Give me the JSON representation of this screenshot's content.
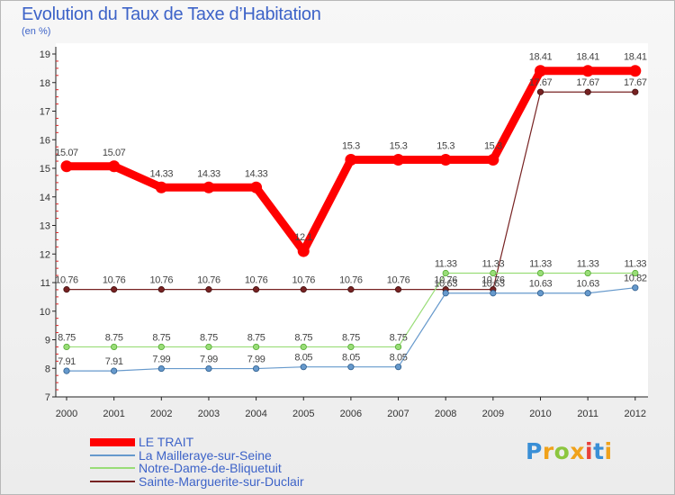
{
  "header": {
    "title": "Evolution du Taux de Taxe d’Habitation",
    "unit": "(en %)"
  },
  "logo": {
    "text": "Proxiti"
  },
  "chart_data": {
    "type": "line",
    "title": "Evolution du Taux de Taxe d’Habitation",
    "ylabel": "(en %)",
    "xlabel": "",
    "x": [
      "2000",
      "2001",
      "2002",
      "2003",
      "2004",
      "2005",
      "2006",
      "2007",
      "2008",
      "2009",
      "2010",
      "2011",
      "2012"
    ],
    "ylim": [
      7,
      19
    ],
    "yticks": [
      "7",
      "8",
      "9",
      "10",
      "11",
      "12",
      "13",
      "14",
      "15",
      "16",
      "17",
      "18",
      "19"
    ],
    "grid": false,
    "legend_position": "bottom-left",
    "series": [
      {
        "name": "LE TRAIT",
        "color": "#ff0000",
        "values": [
          15.07,
          15.07,
          14.33,
          14.33,
          14.33,
          12.1,
          15.3,
          15.3,
          15.3,
          15.3,
          18.41,
          18.41,
          18.41
        ],
        "labels": [
          "15.07",
          "15.07",
          "14.33",
          "14.33",
          "14.33",
          "12.1",
          "15.3",
          "15.3",
          "15.3",
          "15.3",
          "18.41",
          "18.41",
          "18.41"
        ]
      },
      {
        "name": "La Mailleraye-sur-Seine",
        "color": "#6699cc",
        "values": [
          7.91,
          7.91,
          7.99,
          7.99,
          7.99,
          8.05,
          8.05,
          8.05,
          10.63,
          10.63,
          10.63,
          10.63,
          10.82
        ],
        "labels": [
          "7.91",
          "7.91",
          "7.99",
          "7.99",
          "7.99",
          "8.05",
          "8.05",
          "8.05",
          "10.63",
          "10.63",
          "10.63",
          "10.63",
          "10.82"
        ]
      },
      {
        "name": "Notre-Dame-de-Bliquetuit",
        "color": "#99dd77",
        "values": [
          8.75,
          8.75,
          8.75,
          8.75,
          8.75,
          8.75,
          8.75,
          8.75,
          11.33,
          11.33,
          11.33,
          11.33,
          11.33
        ],
        "labels": [
          "8.75",
          "8.75",
          "8.75",
          "8.75",
          "8.75",
          "8.75",
          "8.75",
          "8.75",
          "11.33",
          "11.33",
          "11.33",
          "11.33",
          "11.33"
        ]
      },
      {
        "name": "Sainte-Marguerite-sur-Duclair",
        "color": "#772222",
        "values": [
          10.76,
          10.76,
          10.76,
          10.76,
          10.76,
          10.76,
          10.76,
          10.76,
          10.76,
          10.76,
          17.67,
          17.67,
          17.67
        ],
        "labels": [
          "10.76",
          "10.76",
          "10.76",
          "10.76",
          "10.76",
          "10.76",
          "10.76",
          "10.76",
          "10.76",
          "10.76",
          "17.67",
          "17.67",
          "17.67"
        ]
      }
    ]
  }
}
